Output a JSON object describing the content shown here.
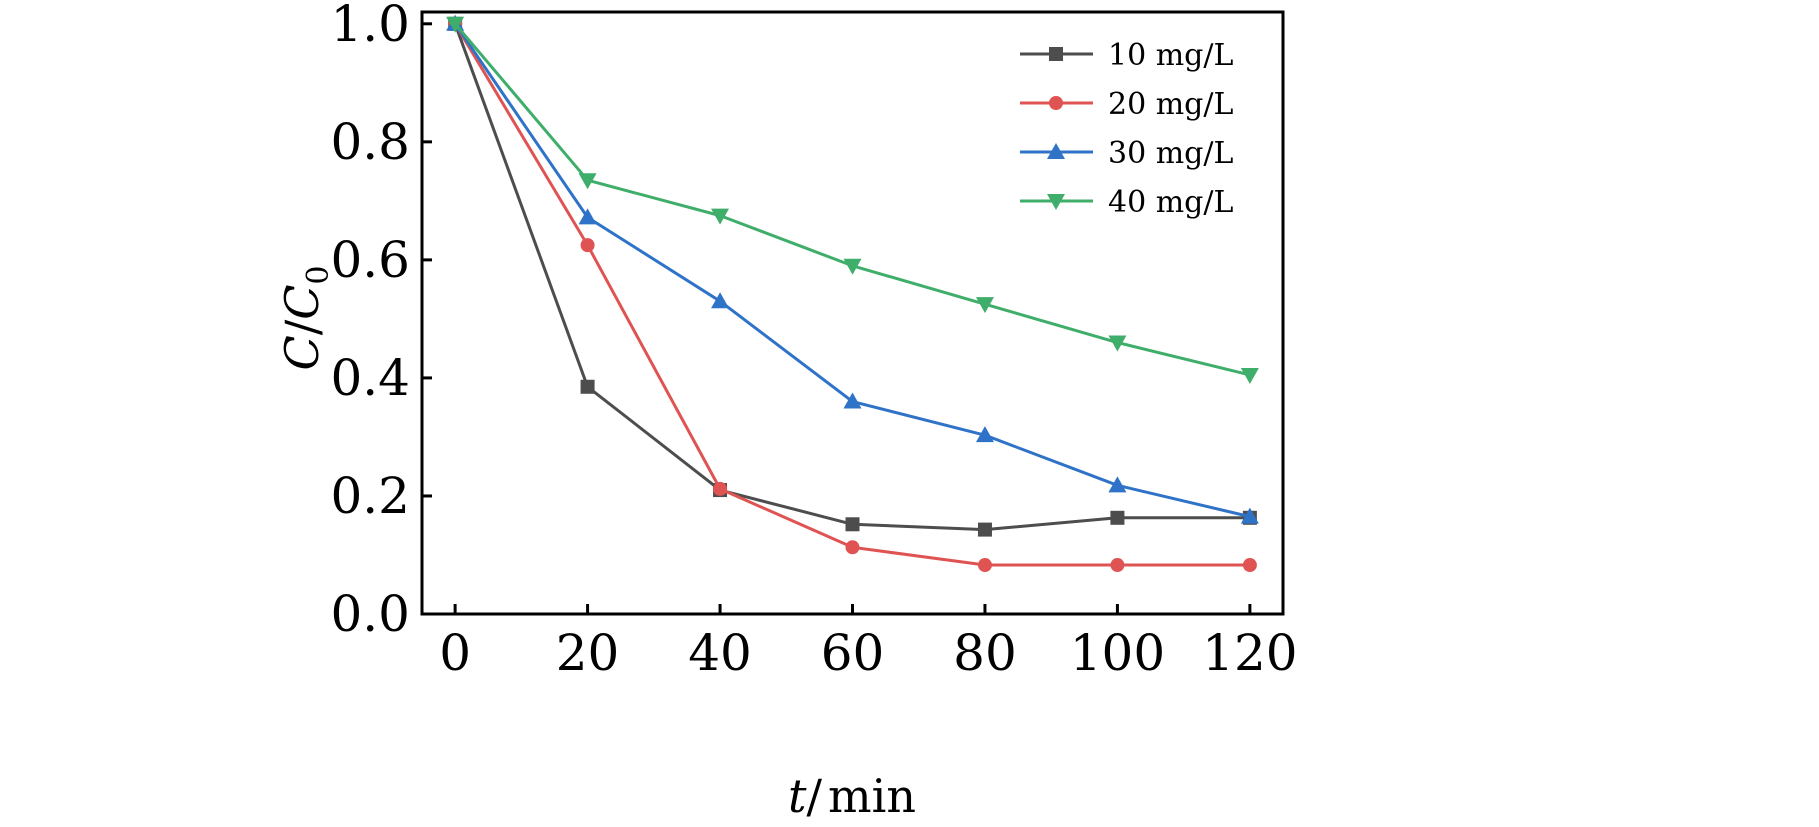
{
  "chart_data": {
    "type": "line",
    "x": [
      0,
      20,
      40,
      60,
      80,
      100,
      120
    ],
    "xlabel": {
      "var": "t",
      "sep": "/",
      "unit": "min"
    },
    "ylabel": {
      "main": "C",
      "sep": "/",
      "denom": "C",
      "sub": "0"
    },
    "xlim": [
      -5,
      125
    ],
    "ylim": [
      0,
      1.02
    ],
    "xticks": [
      "0",
      "20",
      "40",
      "60",
      "80",
      "100",
      "120"
    ],
    "yticks": [
      "0.0",
      "0.2",
      "0.4",
      "0.6",
      "0.8",
      "1.0"
    ],
    "legend_position": "top-right",
    "grid": false,
    "series": [
      {
        "name": "10 mg/L",
        "color": "#4d4d4d",
        "marker": "square",
        "values": [
          1.0,
          0.385,
          0.21,
          0.152,
          0.143,
          0.163,
          0.163
        ]
      },
      {
        "name": "20 mg/L",
        "color": "#e05353",
        "marker": "circle",
        "values": [
          1.0,
          0.625,
          0.212,
          0.113,
          0.083,
          0.083,
          0.083
        ]
      },
      {
        "name": "30 mg/L",
        "color": "#2f73c9",
        "marker": "triangle-up",
        "values": [
          1.0,
          0.672,
          0.53,
          0.36,
          0.303,
          0.218,
          0.165
        ]
      },
      {
        "name": "40 mg/L",
        "color": "#3fae6a",
        "marker": "triangle-down",
        "values": [
          1.0,
          0.735,
          0.675,
          0.59,
          0.525,
          0.46,
          0.405
        ]
      }
    ]
  }
}
